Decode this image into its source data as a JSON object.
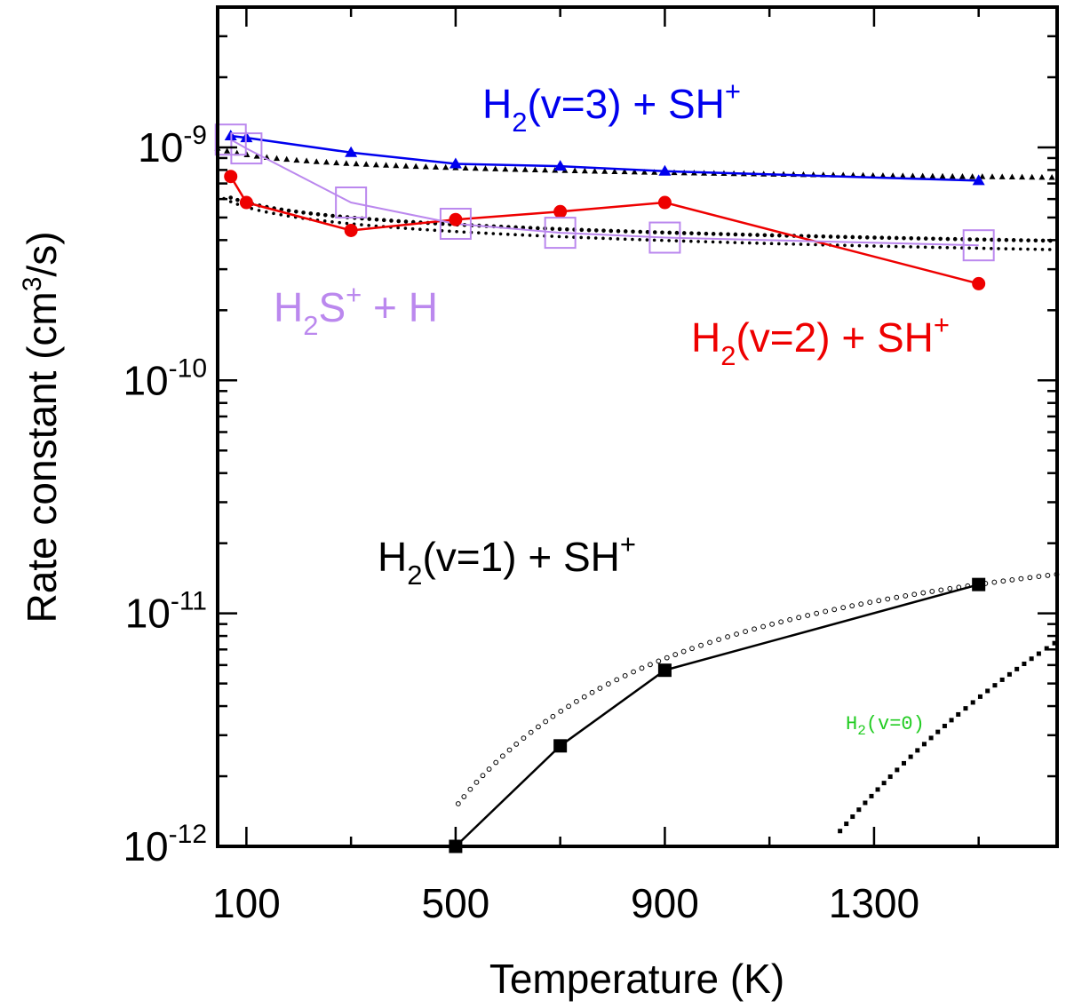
{
  "chart_data": {
    "type": "line",
    "title": "",
    "xlabel": "Temperature (K)",
    "ylabel_parts": [
      "Rate constant (cm",
      "3",
      "/s)"
    ],
    "ylabel": "Rate constant (cm3/s)",
    "xlim": [
      45,
      1650
    ],
    "ylim": [
      1e-12,
      4e-09
    ],
    "yscale": "log",
    "xticks": [
      100,
      500,
      900,
      1300
    ],
    "xtick_labels": [
      "100",
      "500",
      "900",
      "1300"
    ],
    "yticks": [
      1e-12,
      1e-11,
      1e-10,
      1e-09
    ],
    "ytick_exponents": [
      "-12",
      "-11",
      "-10",
      "-9"
    ],
    "ytick_base": "10",
    "series": [
      {
        "name": "H2(v=3) + SH+",
        "label_parts": [
          "H",
          "2",
          "(v=3) + SH",
          "+"
        ],
        "color": "#0000ee",
        "marker": "triangle",
        "x": [
          70,
          100,
          300,
          500,
          700,
          900,
          1500
        ],
        "y": [
          1.12e-09,
          1.1e-09,
          9.5e-10,
          8.5e-10,
          8.3e-10,
          7.9e-10,
          7.2e-10
        ],
        "fit": {
          "type": "power",
          "a": 8.5e-10,
          "b": -0.08,
          "xrange": [
            45,
            1650
          ],
          "style": "triangles"
        }
      },
      {
        "name": "H2(v=2) + SH+",
        "label_parts": [
          "H",
          "2",
          "(v=2) + SH",
          "+"
        ],
        "color": "#ee0000",
        "marker": "circle",
        "x": [
          70,
          100,
          300,
          500,
          700,
          900,
          1500
        ],
        "y": [
          7.5e-10,
          5.8e-10,
          4.4e-10,
          4.9e-10,
          5.3e-10,
          5.8e-10,
          2.6e-10
        ],
        "fit": {
          "type": "power",
          "a": 5e-10,
          "b": -0.135,
          "xrange": [
            70,
            1650
          ],
          "style": "dots"
        }
      },
      {
        "name": "H2S+ + H",
        "label_parts": [
          "H",
          "2",
          "S",
          "+",
          " + H"
        ],
        "color": "#bb88ee",
        "marker": "open-square",
        "x": [
          70,
          100,
          300,
          500,
          700,
          900,
          1500
        ],
        "y": [
          1.08e-09,
          9.9e-10,
          5.8e-10,
          4.7e-10,
          4.3e-10,
          4.1e-10,
          3.8e-10
        ],
        "fit": {
          "type": "power",
          "a": 4.7e-10,
          "b": -0.15,
          "xrange": [
            45,
            1650
          ],
          "style": "small-dots"
        }
      },
      {
        "name": "H2(v=1) + SH+",
        "label_parts": [
          "H",
          "2",
          "(v=1) + SH",
          "+"
        ],
        "color": "#000000",
        "marker": "square",
        "x": [
          500,
          700,
          900,
          1500
        ],
        "y": [
          1e-12,
          2.7e-12,
          5.7e-12,
          1.33e-11
        ],
        "fit": {
          "type": "arrhenius",
          "a": 4e-11,
          "ea": 1650,
          "xrange": [
            505,
            1650
          ],
          "style": "open-circles"
        }
      },
      {
        "name": "H2(v=0)",
        "label_parts": [
          "H",
          "2",
          "(v=0)"
        ],
        "color": "#22cc22",
        "marker": "none",
        "x": [],
        "y": [],
        "fit": {
          "type": "arrhenius",
          "a": 2e-09,
          "ea": 9200,
          "xrange": [
            1235,
            1650
          ],
          "style": "black-squares"
        }
      }
    ]
  }
}
